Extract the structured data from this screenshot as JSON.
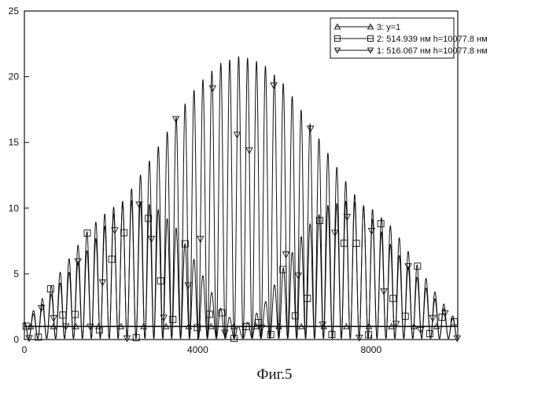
{
  "figure_caption": "Фиг.5",
  "chart_data": {
    "type": "line",
    "title": "",
    "xlabel": "",
    "ylabel": "",
    "xlim": [
      0,
      10000
    ],
    "ylim": [
      0,
      25
    ],
    "x_ticks": [
      0,
      4000,
      8000
    ],
    "x_tick_labels": [
      "0",
      "4000",
      "8000"
    ],
    "y_ticks": [
      0,
      5,
      10,
      15,
      20,
      25
    ],
    "y_tick_labels": [
      "0",
      "5",
      "10",
      "15",
      "20",
      "25"
    ],
    "grid": false,
    "legend_position": "top-right",
    "series": [
      {
        "name": "3: y=1",
        "marker": "triangle-up",
        "color": "#111111",
        "x": [
          0,
          10000
        ],
        "y": [
          1,
          1
        ]
      },
      {
        "name": "2: 514.939 нм h=10077.8 нм",
        "marker": "square",
        "color": "#111111",
        "envelope": {
          "x": [
            0,
            500,
            1000,
            1500,
            2000,
            2500,
            3000,
            3500,
            4000,
            4500,
            5000,
            5500,
            6000,
            6500,
            7000,
            7500,
            8000,
            8500,
            9000,
            9500,
            10000
          ],
          "y": [
            1.3,
            3.5,
            6.0,
            8.5,
            10.0,
            10.6,
            10.2,
            8.5,
            5.6,
            2.5,
            0.8,
            2.5,
            5.6,
            8.5,
            10.2,
            10.6,
            10.0,
            8.5,
            6.0,
            3.5,
            1.3
          ]
        },
        "fringe_period": 206
      },
      {
        "name": "1: 516.067 нм  h=10077.8 нм",
        "marker": "triangle-down",
        "color": "#111111",
        "envelope": {
          "x": [
            0,
            500,
            1000,
            1500,
            2000,
            2500,
            3000,
            3500,
            4000,
            4500,
            5000,
            5500,
            6000,
            6500,
            7000,
            7500,
            8000,
            8500,
            9000,
            9500,
            10000
          ],
          "y": [
            1.2,
            3.0,
            5.0,
            7.0,
            9.3,
            11.6,
            14.2,
            16.9,
            19.4,
            21.0,
            21.6,
            21.0,
            19.4,
            16.9,
            14.2,
            11.6,
            9.3,
            7.0,
            5.0,
            3.0,
            1.2
          ]
        },
        "fringe_period": 206
      }
    ]
  }
}
